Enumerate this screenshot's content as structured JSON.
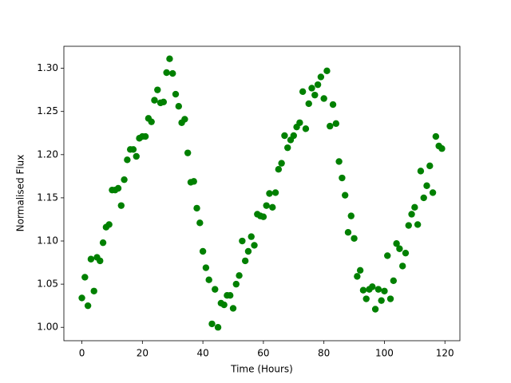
{
  "chart_data": {
    "type": "scatter",
    "xlabel": "Time (Hours)",
    "ylabel": "Normalised Flux",
    "color": "#008000",
    "x": [
      0,
      1,
      2,
      3,
      4,
      5,
      6,
      7,
      8,
      9,
      10,
      11,
      12,
      13,
      14,
      15,
      16,
      17,
      18,
      19,
      20,
      21,
      22,
      23,
      24,
      25,
      26,
      27,
      28,
      29,
      30,
      31,
      32,
      33,
      34,
      35,
      36,
      37,
      38,
      39,
      40,
      41,
      42,
      43,
      44,
      45,
      46,
      47,
      48,
      49,
      50,
      51,
      52,
      53,
      54,
      55,
      56,
      57,
      58,
      59,
      60,
      61,
      62,
      63,
      64,
      65,
      66,
      67,
      68,
      69,
      70,
      71,
      72,
      73,
      74,
      75,
      76,
      77,
      78,
      79,
      80,
      81,
      82,
      83,
      84,
      85,
      86,
      87,
      88,
      89,
      90,
      91,
      92,
      93,
      94,
      95,
      96,
      97,
      98,
      99,
      100,
      101,
      102,
      103,
      104,
      105,
      106,
      107,
      108,
      109,
      110,
      111,
      112,
      113,
      114,
      115,
      116,
      117,
      118,
      119
    ],
    "y": [
      1.034,
      1.058,
      1.025,
      1.079,
      1.042,
      1.081,
      1.077,
      1.098,
      1.116,
      1.119,
      1.159,
      1.159,
      1.161,
      1.141,
      1.171,
      1.194,
      1.206,
      1.206,
      1.198,
      1.219,
      1.221,
      1.221,
      1.242,
      1.238,
      1.263,
      1.275,
      1.26,
      1.261,
      1.295,
      1.311,
      1.294,
      1.27,
      1.256,
      1.237,
      1.241,
      1.202,
      1.168,
      1.169,
      1.138,
      1.121,
      1.088,
      1.069,
      1.055,
      1.004,
      1.044,
      1.0,
      1.028,
      1.026,
      1.037,
      1.037,
      1.022,
      1.05,
      1.06,
      1.1,
      1.077,
      1.088,
      1.105,
      1.095,
      1.131,
      1.129,
      1.128,
      1.141,
      1.155,
      1.139,
      1.156,
      1.183,
      1.19,
      1.222,
      1.208,
      1.217,
      1.222,
      1.232,
      1.237,
      1.273,
      1.23,
      1.259,
      1.277,
      1.269,
      1.281,
      1.29,
      1.265,
      1.297,
      1.233,
      1.258,
      1.236,
      1.192,
      1.173,
      1.153,
      1.11,
      1.129,
      1.103,
      1.059,
      1.066,
      1.043,
      1.033,
      1.044,
      1.047,
      1.021,
      1.044,
      1.031,
      1.042,
      1.083,
      1.033,
      1.054,
      1.097,
      1.091,
      1.071,
      1.086,
      1.118,
      1.131,
      1.139,
      1.119,
      1.181,
      1.15,
      1.164,
      1.187,
      1.156,
      1.221,
      1.21,
      1.207
    ],
    "xlim": [
      -5.95,
      124.95
    ],
    "ylim": [
      0.9845,
      1.3255
    ],
    "xticks": [
      0,
      20,
      40,
      60,
      80,
      100,
      120
    ],
    "yticks": [
      {
        "value": 1.0,
        "label": "1.00"
      },
      1.05,
      {
        "value": 1.1,
        "label": "1.10"
      },
      1.15,
      {
        "value": 1.2,
        "label": "1.20"
      },
      1.25,
      {
        "value": 1.3,
        "label": "1.30"
      }
    ]
  }
}
